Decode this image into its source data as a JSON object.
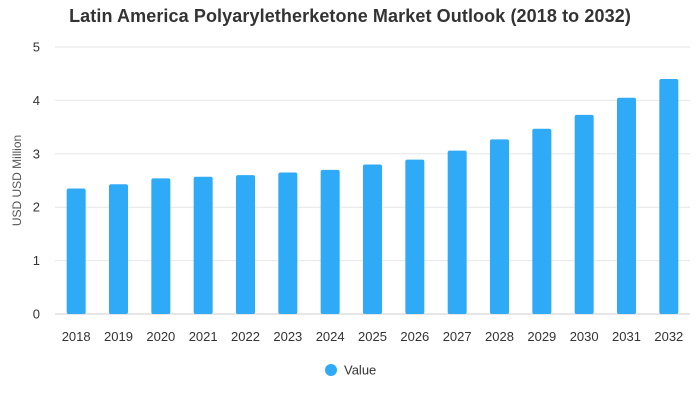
{
  "chart_data": {
    "type": "bar",
    "title": "Latin America Polyaryletherketone Market Outlook (2018 to 2032)",
    "xlabel": "",
    "ylabel": "USD USD Million",
    "categories": [
      "2018",
      "2019",
      "2020",
      "2021",
      "2022",
      "2023",
      "2024",
      "2025",
      "2026",
      "2027",
      "2028",
      "2029",
      "2030",
      "2031",
      "2032"
    ],
    "series": [
      {
        "name": "Value",
        "values": [
          2.35,
          2.43,
          2.54,
          2.57,
          2.6,
          2.65,
          2.7,
          2.8,
          2.89,
          3.06,
          3.27,
          3.47,
          3.73,
          4.05,
          4.4
        ]
      }
    ],
    "ylim": [
      0,
      5
    ],
    "yticks": [
      "0",
      "1",
      "2",
      "3",
      "4",
      "5"
    ],
    "grid": true,
    "legend_position": "bottom-center",
    "colors": {
      "bar": "#2EAAF7",
      "grid": "#E6E6E6",
      "axis_text": "#333333",
      "title": "#333333"
    }
  }
}
